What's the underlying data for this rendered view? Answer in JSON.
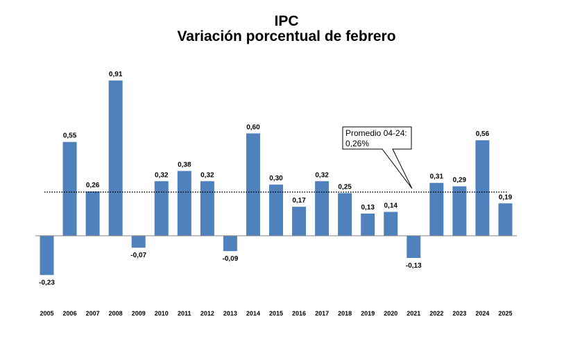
{
  "title": "IPC",
  "subtitle": "Variación porcentual de febrero",
  "chart_data": {
    "type": "bar",
    "categories": [
      "2005",
      "2006",
      "2007",
      "2008",
      "2009",
      "2010",
      "2011",
      "2012",
      "2013",
      "2014",
      "2015",
      "2016",
      "2017",
      "2018",
      "2019",
      "2020",
      "2021",
      "2022",
      "2023",
      "2024",
      "2025"
    ],
    "values": [
      -0.23,
      0.55,
      0.26,
      0.91,
      -0.07,
      0.32,
      0.38,
      0.32,
      -0.09,
      0.6,
      0.3,
      0.17,
      0.32,
      0.25,
      0.13,
      0.14,
      -0.13,
      0.31,
      0.29,
      0.56,
      0.19
    ],
    "labels": [
      "-0,23",
      "0,55",
      "0,26",
      "0,91",
      "-0,07",
      "0,32",
      "0,38",
      "0,32",
      "-0,09",
      "0,60",
      "0,30",
      "0,17",
      "0,32",
      "0,25",
      "0,13",
      "0,14",
      "-0,13",
      "0,31",
      "0,29",
      "0,56",
      "0,19"
    ],
    "bar_color": "#4f81bd",
    "ylim": [
      -0.23,
      0.91
    ],
    "reference_line": {
      "value": 0.26,
      "style": "dotted",
      "annotation_line1": "Promedio 04-24:",
      "annotation_line2": "0,26%"
    },
    "grid": false,
    "legend": "none"
  }
}
